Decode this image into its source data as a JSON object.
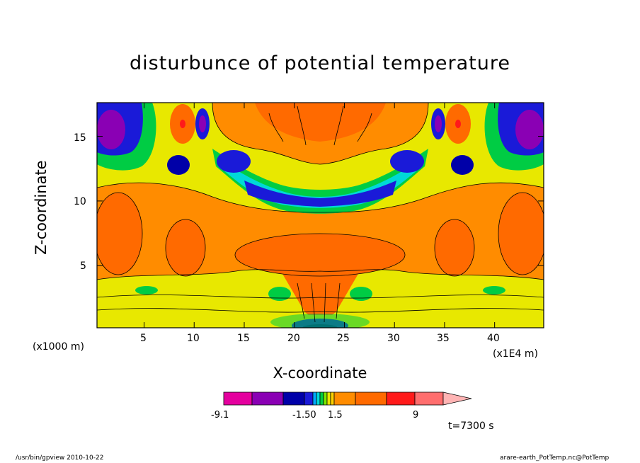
{
  "chart_data": {
    "type": "heatmap",
    "title": "disturbunce of potential temperature",
    "xlabel": "X-coordinate",
    "ylabel": "Z-coordinate",
    "x_unit_left": "(x1000 m)",
    "x_unit_right": "(x1E4 m)",
    "xlim": [
      0.3,
      44.9
    ],
    "ylim": [
      0.2,
      17.6
    ],
    "x_ticks": [
      "5",
      "10",
      "15",
      "20",
      "25",
      "30",
      "35",
      "40"
    ],
    "y_ticks": [
      "5",
      "10",
      "15"
    ],
    "colorbar": {
      "colors": [
        "#e4009e",
        "#8a00b4",
        "#0000a8",
        "#1a1ad8",
        "#00a8ff",
        "#00d8d8",
        "#00cc44",
        "#7ce800",
        "#e8e800",
        "#ffd000",
        "#ff8c00",
        "#ff6a00",
        "#ff1a1a",
        "#ff6e6e",
        "#ffb4b4"
      ],
      "tick_labels": [
        "-9.1",
        "-1.50",
        "1.5",
        "9"
      ]
    },
    "grid": false
  },
  "annotations": {
    "time": "t=7300 s",
    "footer_left": "/usr/bin/gpview   2010-10-22",
    "footer_right": "arare-earth_PotTemp.nc@PotTemp"
  }
}
